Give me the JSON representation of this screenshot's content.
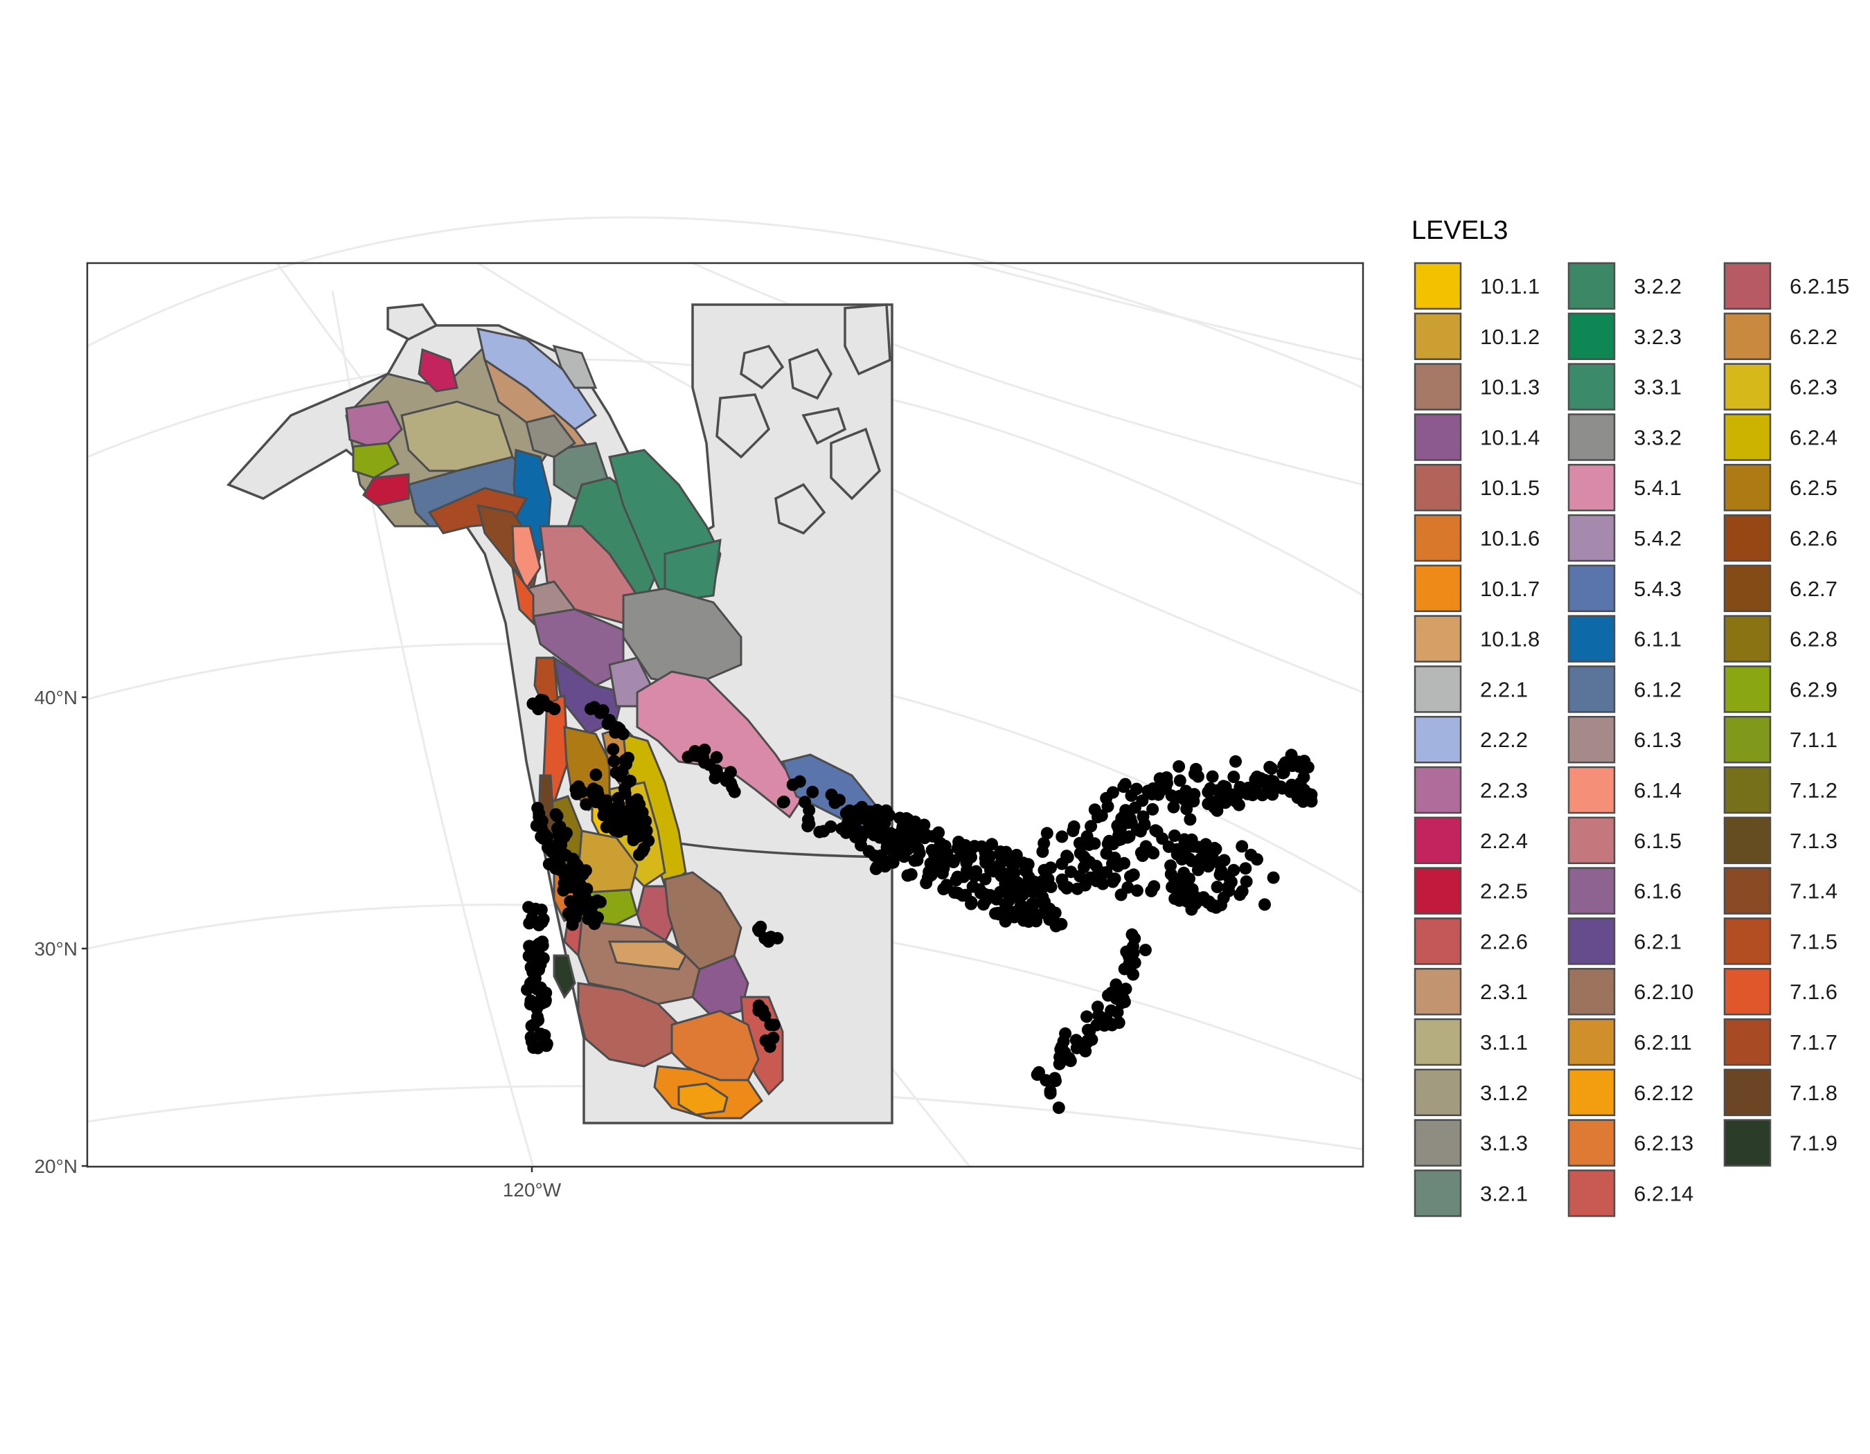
{
  "map": {
    "axis_labels": {
      "y": [
        "40°N",
        "30°N",
        "20°N"
      ],
      "x": [
        "120°W"
      ]
    },
    "colors": {
      "panel_border": "#333333",
      "graticule": "#ebebeb",
      "land_fill": "#e5e5e5",
      "region_outline": "#4d4d4d",
      "points": "#000000"
    },
    "points_layer": "occurrence points (black dots)"
  },
  "legend": {
    "title": "LEVEL3",
    "items": [
      {
        "label": "10.1.1",
        "color": "#f2c200"
      },
      {
        "label": "10.1.2",
        "color": "#cc9f33"
      },
      {
        "label": "10.1.3",
        "color": "#a67866"
      },
      {
        "label": "10.1.4",
        "color": "#8c5a8f"
      },
      {
        "label": "10.1.5",
        "color": "#b3645a"
      },
      {
        "label": "10.1.6",
        "color": "#d9782b"
      },
      {
        "label": "10.1.7",
        "color": "#ee8a17"
      },
      {
        "label": "10.1.8",
        "color": "#d4a065"
      },
      {
        "label": "2.2.1",
        "color": "#b5b8b7"
      },
      {
        "label": "2.2.2",
        "color": "#a3b3e0"
      },
      {
        "label": "2.2.3",
        "color": "#b06d9c"
      },
      {
        "label": "2.2.4",
        "color": "#c4245e"
      },
      {
        "label": "2.2.5",
        "color": "#c21a3d"
      },
      {
        "label": "2.2.6",
        "color": "#c45757"
      },
      {
        "label": "2.3.1",
        "color": "#c29470"
      },
      {
        "label": "3.1.1",
        "color": "#b5ad80"
      },
      {
        "label": "3.1.2",
        "color": "#a39b80"
      },
      {
        "label": "3.1.3",
        "color": "#8f8c82"
      },
      {
        "label": "3.2.1",
        "color": "#6b887a"
      },
      {
        "label": "3.2.2",
        "color": "#3c8766"
      },
      {
        "label": "3.2.3",
        "color": "#0f8754"
      },
      {
        "label": "3.3.1",
        "color": "#3b8a6a"
      },
      {
        "label": "3.3.2",
        "color": "#8e8e8c"
      },
      {
        "label": "5.4.1",
        "color": "#d98aa8"
      },
      {
        "label": "5.4.2",
        "color": "#a68aad"
      },
      {
        "label": "5.4.3",
        "color": "#5a75ab"
      },
      {
        "label": "6.1.1",
        "color": "#0d69a8"
      },
      {
        "label": "6.1.2",
        "color": "#5a7599"
      },
      {
        "label": "6.1.3",
        "color": "#a68a8a"
      },
      {
        "label": "6.1.4",
        "color": "#f58f78"
      },
      {
        "label": "6.1.5",
        "color": "#c4787d"
      },
      {
        "label": "6.1.6",
        "color": "#8f6391"
      },
      {
        "label": "6.2.1",
        "color": "#664c8c"
      },
      {
        "label": "6.2.10",
        "color": "#9c735c"
      },
      {
        "label": "6.2.11",
        "color": "#d18f2b"
      },
      {
        "label": "6.2.12",
        "color": "#f29e0f"
      },
      {
        "label": "6.2.13",
        "color": "#de7a33"
      },
      {
        "label": "6.2.14",
        "color": "#c95a52"
      },
      {
        "label": "6.2.15",
        "color": "#b85a63"
      },
      {
        "label": "6.2.2",
        "color": "#c98a40"
      },
      {
        "label": "6.2.3",
        "color": "#d6b81a"
      },
      {
        "label": "6.2.4",
        "color": "#ccb300"
      },
      {
        "label": "6.2.5",
        "color": "#ad7a14"
      },
      {
        "label": "6.2.6",
        "color": "#964714"
      },
      {
        "label": "6.2.7",
        "color": "#854b17"
      },
      {
        "label": "6.2.8",
        "color": "#8a7312"
      },
      {
        "label": "6.2.9",
        "color": "#8aa612"
      },
      {
        "label": "7.1.1",
        "color": "#80991a"
      },
      {
        "label": "7.1.2",
        "color": "#757019"
      },
      {
        "label": "7.1.3",
        "color": "#664d21"
      },
      {
        "label": "7.1.4",
        "color": "#8a4a24"
      },
      {
        "label": "7.1.5",
        "color": "#b34d22"
      },
      {
        "label": "7.1.6",
        "color": "#e0572b"
      },
      {
        "label": "7.1.7",
        "color": "#a84a24"
      },
      {
        "label": "7.1.8",
        "color": "#6b4524"
      },
      {
        "label": "7.1.9",
        "color": "#2b3d28"
      }
    ]
  }
}
